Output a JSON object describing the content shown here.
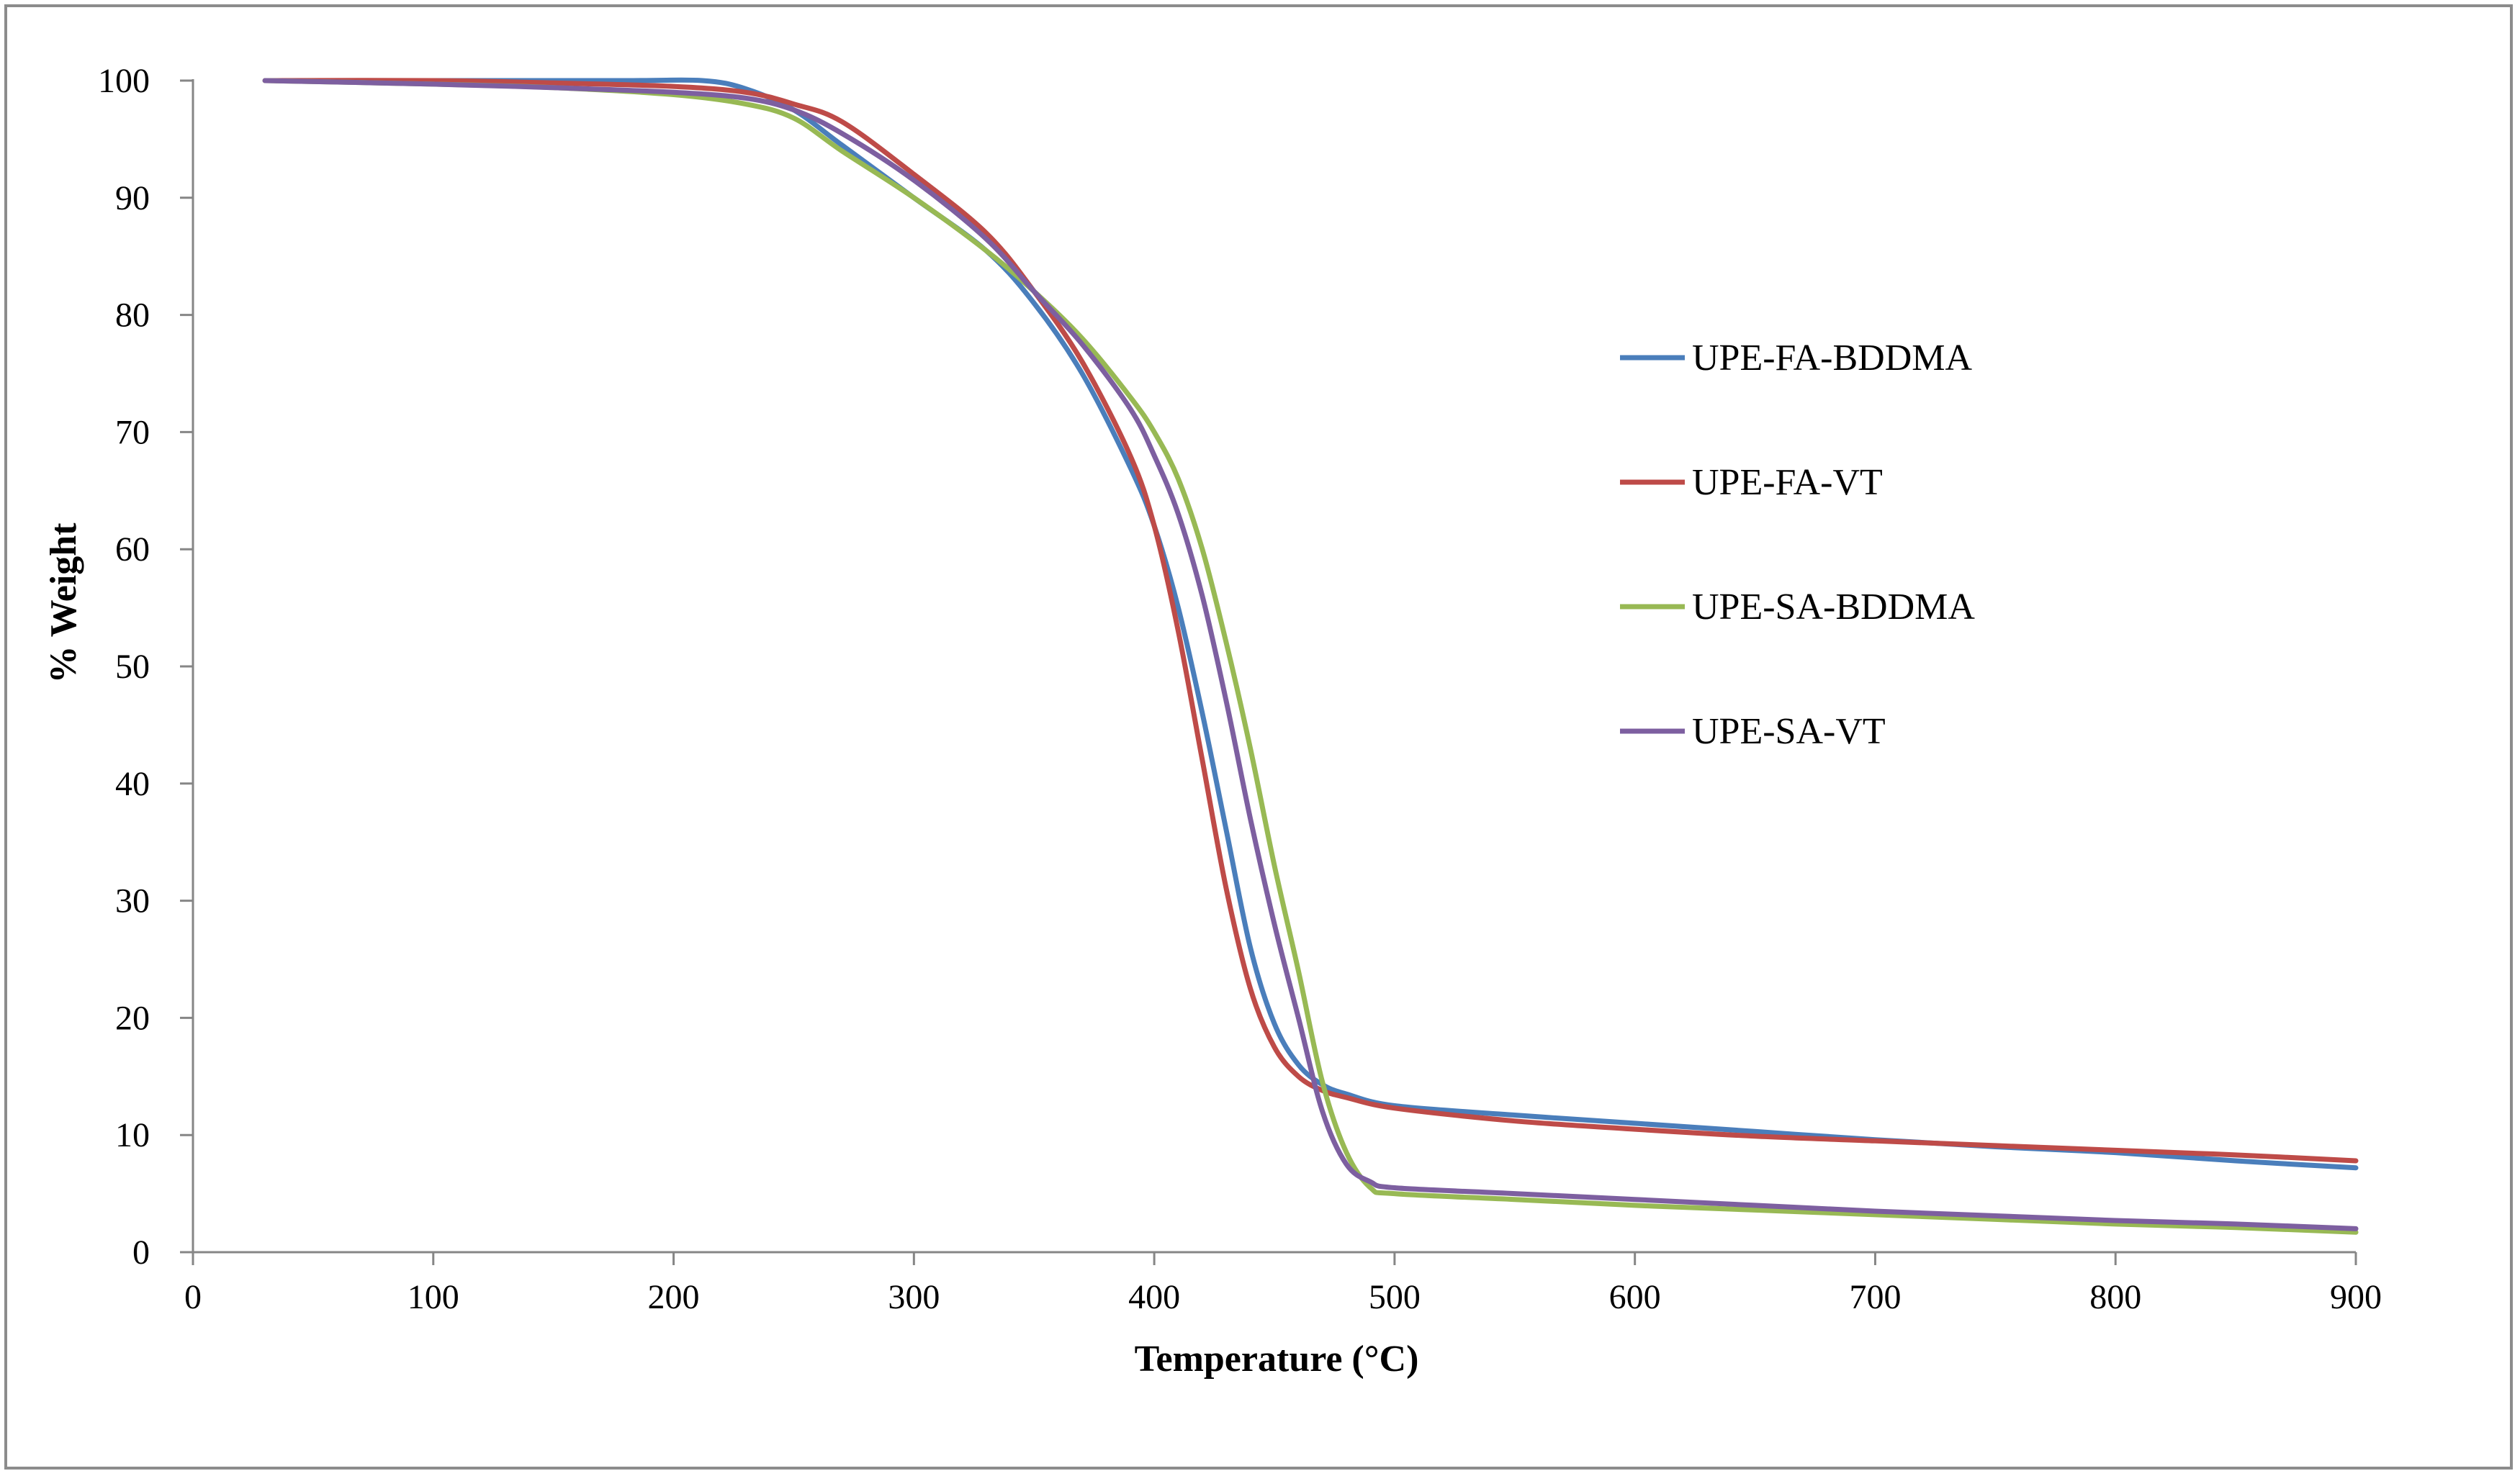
{
  "chart_data": {
    "type": "line",
    "title": "",
    "xlabel": "Temperature (°C)",
    "ylabel": "% Weight",
    "xlim": [
      0,
      900
    ],
    "ylim": [
      0,
      100
    ],
    "xticks": [
      0,
      100,
      200,
      300,
      400,
      500,
      600,
      700,
      800,
      900
    ],
    "yticks": [
      0,
      10,
      20,
      30,
      40,
      50,
      60,
      70,
      80,
      90,
      100
    ],
    "grid": false,
    "legend_position": "right-middle",
    "series": [
      {
        "name": "UPE-FA-BDDMA",
        "color": "#4a7ebb",
        "x": [
          30,
          100,
          180,
          212,
          230,
          250,
          270,
          300,
          330,
          350,
          370,
          390,
          400,
          410,
          420,
          430,
          440,
          450,
          460,
          470,
          480,
          500,
          550,
          600,
          650,
          700,
          750,
          800,
          850,
          900
        ],
        "y": [
          100,
          100,
          100,
          100,
          99.3,
          97.5,
          94.5,
          90,
          85.5,
          81,
          75,
          67,
          62,
          55,
          46,
          36,
          26,
          19.5,
          16,
          14.3,
          13.5,
          12.5,
          11.7,
          11,
          10.3,
          9.6,
          9,
          8.5,
          7.8,
          7.2
        ]
      },
      {
        "name": "UPE-FA-VT",
        "color": "#be4b48",
        "x": [
          30,
          100,
          150,
          200,
          230,
          250,
          270,
          300,
          330,
          350,
          370,
          390,
          400,
          410,
          420,
          430,
          440,
          450,
          460,
          470,
          480,
          500,
          550,
          600,
          650,
          700,
          750,
          800,
          850,
          900
        ],
        "y": [
          100,
          100,
          99.8,
          99.5,
          99,
          98,
          96.5,
          92,
          87,
          82,
          76,
          68,
          62,
          53,
          42,
          31,
          22.5,
          17.5,
          15,
          13.8,
          13.2,
          12.3,
          11.2,
          10.5,
          9.9,
          9.5,
          9.1,
          8.7,
          8.3,
          7.8
        ]
      },
      {
        "name": "UPE-SA-BDDMA",
        "color": "#98b954",
        "x": [
          30,
          100,
          150,
          200,
          230,
          250,
          270,
          300,
          330,
          350,
          370,
          390,
          400,
          410,
          420,
          430,
          440,
          450,
          460,
          470,
          480,
          490,
          500,
          550,
          600,
          650,
          700,
          750,
          800,
          850,
          900
        ],
        "y": [
          100,
          99.7,
          99.4,
          98.8,
          98,
          96.8,
          94,
          90,
          85.5,
          82,
          78,
          73,
          70,
          66,
          60,
          52,
          43,
          33,
          24,
          14.5,
          8.5,
          5.5,
          5,
          4.5,
          4,
          3.6,
          3.2,
          2.8,
          2.4,
          2.1,
          1.7
        ]
      },
      {
        "name": "UPE-SA-VT",
        "color": "#7d5fa0",
        "x": [
          30,
          100,
          150,
          200,
          230,
          250,
          270,
          300,
          330,
          350,
          370,
          390,
          400,
          410,
          420,
          430,
          440,
          450,
          460,
          470,
          480,
          490,
          500,
          550,
          600,
          650,
          700,
          750,
          800,
          850,
          900
        ],
        "y": [
          100,
          99.7,
          99.4,
          99,
          98.5,
          97.5,
          95.5,
          91.5,
          86.5,
          82,
          77.5,
          72,
          68,
          63,
          56,
          47,
          37,
          28,
          20,
          12,
          7.5,
          6,
          5.5,
          5,
          4.5,
          4,
          3.5,
          3.1,
          2.7,
          2.4,
          2
        ]
      }
    ]
  }
}
